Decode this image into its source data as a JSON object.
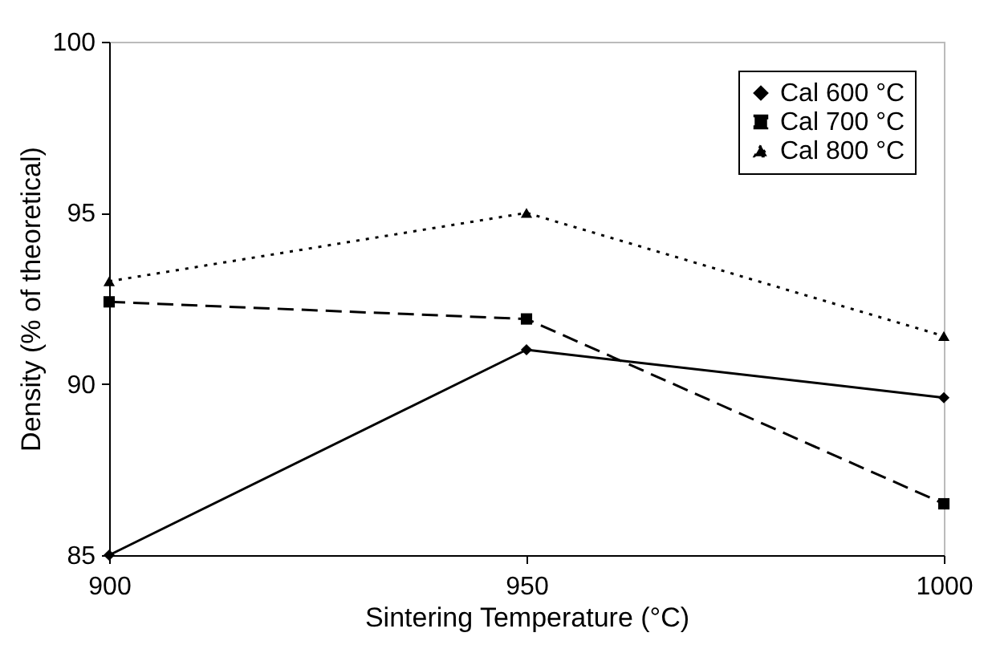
{
  "chart_data": {
    "type": "line",
    "xlabel": "Sintering Temperature (°C)",
    "ylabel": "Density (% of theoretical)",
    "x": [
      900,
      950,
      1000
    ],
    "xlim": [
      900,
      1000
    ],
    "xticks": [
      900,
      950,
      1000
    ],
    "ylim": [
      85,
      100
    ],
    "yticks": [
      85,
      90,
      95,
      100
    ],
    "grid": false,
    "legend": "top right",
    "series": [
      {
        "name": "Cal 600 °C",
        "color": "#000000",
        "marker": "diamond",
        "line_style": "solid",
        "values": [
          85.0,
          91.0,
          89.6
        ]
      },
      {
        "name": "Cal 700 °C",
        "color": "#000000",
        "marker": "square",
        "line_style": "dashed",
        "values": [
          92.4,
          91.9,
          86.5
        ]
      },
      {
        "name": "Cal 800 °C",
        "color": "#000000",
        "marker": "triangle",
        "line_style": "dotted",
        "values": [
          93.0,
          95.0,
          91.4
        ]
      }
    ]
  }
}
